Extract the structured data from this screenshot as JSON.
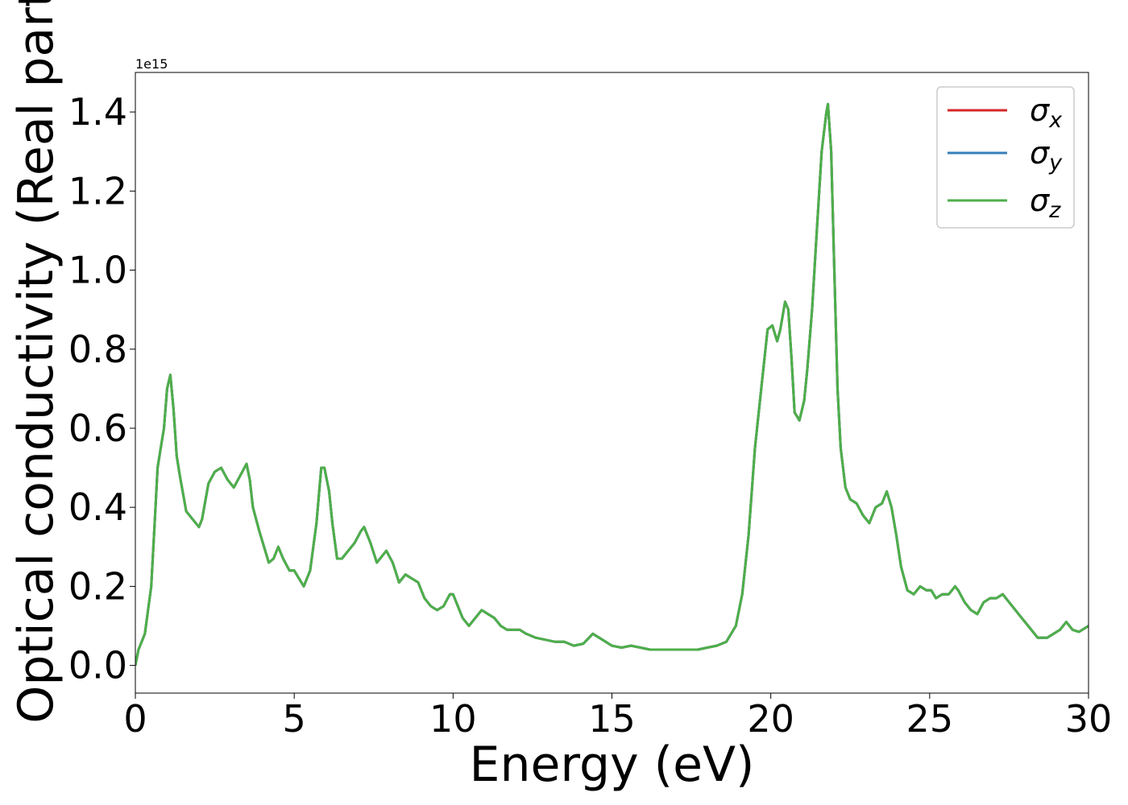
{
  "chart_data": {
    "type": "line",
    "xlabel": "Energy (eV)",
    "ylabel": "Optical conductivity (Real part)",
    "y_offset_label": "1e15",
    "xlim": [
      0,
      30
    ],
    "ylim": [
      -0.07,
      1.5
    ],
    "x_ticks": [
      0,
      5,
      10,
      15,
      20,
      25,
      30
    ],
    "x_tick_labels": [
      "0",
      "5",
      "10",
      "15",
      "20",
      "25",
      "30"
    ],
    "y_ticks": [
      0.0,
      0.2,
      0.4,
      0.6,
      0.8,
      1.0,
      1.2,
      1.4
    ],
    "y_tick_labels": [
      "0.0",
      "0.2",
      "0.4",
      "0.6",
      "0.8",
      "1.0",
      "1.2",
      "1.4"
    ],
    "grid": false,
    "legend_position": "top-right",
    "x": [
      0,
      0.1,
      0.3,
      0.5,
      0.6,
      0.7,
      0.8,
      0.9,
      1.0,
      1.1,
      1.2,
      1.3,
      1.4,
      1.6,
      1.8,
      2.0,
      2.1,
      2.3,
      2.5,
      2.7,
      2.9,
      3.1,
      3.3,
      3.5,
      3.6,
      3.7,
      3.9,
      4.2,
      4.35,
      4.5,
      4.65,
      4.85,
      5.0,
      5.15,
      5.3,
      5.5,
      5.7,
      5.85,
      5.95,
      6.1,
      6.2,
      6.35,
      6.5,
      6.7,
      6.9,
      7.1,
      7.2,
      7.4,
      7.6,
      7.9,
      8.1,
      8.3,
      8.5,
      8.7,
      8.9,
      9.1,
      9.3,
      9.5,
      9.7,
      9.9,
      10.0,
      10.1,
      10.3,
      10.5,
      10.7,
      10.9,
      11.1,
      11.3,
      11.5,
      11.7,
      11.9,
      12.1,
      12.3,
      12.6,
      12.9,
      13.2,
      13.5,
      13.8,
      14.1,
      14.4,
      14.7,
      15.0,
      15.3,
      15.6,
      15.9,
      16.2,
      16.5,
      16.8,
      17.1,
      17.4,
      17.7,
      18.0,
      18.3,
      18.6,
      18.9,
      19.1,
      19.3,
      19.5,
      19.7,
      19.9,
      20.05,
      20.2,
      20.3,
      20.45,
      20.55,
      20.65,
      20.75,
      20.9,
      21.05,
      21.15,
      21.3,
      21.45,
      21.6,
      21.75,
      21.8,
      21.9,
      22.0,
      22.1,
      22.2,
      22.35,
      22.5,
      22.7,
      22.9,
      23.1,
      23.3,
      23.5,
      23.65,
      23.8,
      23.95,
      24.1,
      24.3,
      24.5,
      24.7,
      24.9,
      25.05,
      25.2,
      25.4,
      25.6,
      25.8,
      25.9,
      26.1,
      26.3,
      26.5,
      26.7,
      26.9,
      27.1,
      27.3,
      27.5,
      27.8,
      28.1,
      28.4,
      28.7,
      28.9,
      29.1,
      29.3,
      29.5,
      29.7,
      30.0
    ],
    "series": [
      {
        "name": "σx",
        "color": "#d62728",
        "values": [
          0.0,
          0.04,
          0.08,
          0.2,
          0.35,
          0.5,
          0.55,
          0.6,
          0.7,
          0.735,
          0.65,
          0.53,
          0.48,
          0.39,
          0.37,
          0.35,
          0.37,
          0.46,
          0.49,
          0.5,
          0.47,
          0.45,
          0.48,
          0.51,
          0.47,
          0.4,
          0.34,
          0.26,
          0.27,
          0.3,
          0.27,
          0.24,
          0.24,
          0.22,
          0.2,
          0.24,
          0.36,
          0.5,
          0.5,
          0.44,
          0.36,
          0.27,
          0.27,
          0.29,
          0.31,
          0.34,
          0.35,
          0.31,
          0.26,
          0.29,
          0.26,
          0.21,
          0.23,
          0.22,
          0.21,
          0.17,
          0.15,
          0.14,
          0.15,
          0.18,
          0.18,
          0.16,
          0.12,
          0.1,
          0.12,
          0.14,
          0.13,
          0.12,
          0.1,
          0.09,
          0.09,
          0.09,
          0.08,
          0.07,
          0.065,
          0.06,
          0.06,
          0.05,
          0.055,
          0.08,
          0.065,
          0.05,
          0.045,
          0.05,
          0.045,
          0.04,
          0.04,
          0.04,
          0.04,
          0.04,
          0.04,
          0.045,
          0.05,
          0.06,
          0.1,
          0.18,
          0.33,
          0.55,
          0.7,
          0.85,
          0.86,
          0.82,
          0.85,
          0.92,
          0.9,
          0.78,
          0.64,
          0.62,
          0.67,
          0.75,
          0.9,
          1.1,
          1.3,
          1.4,
          1.42,
          1.3,
          1.0,
          0.7,
          0.55,
          0.45,
          0.42,
          0.41,
          0.38,
          0.36,
          0.4,
          0.41,
          0.44,
          0.4,
          0.33,
          0.25,
          0.19,
          0.18,
          0.2,
          0.19,
          0.19,
          0.17,
          0.18,
          0.18,
          0.2,
          0.19,
          0.16,
          0.14,
          0.13,
          0.16,
          0.17,
          0.17,
          0.18,
          0.16,
          0.13,
          0.1,
          0.07,
          0.07,
          0.08,
          0.09,
          0.11,
          0.09,
          0.085,
          0.1
        ]
      },
      {
        "name": "σy",
        "color": "#377eb8",
        "values": [
          0.0,
          0.04,
          0.08,
          0.2,
          0.35,
          0.5,
          0.55,
          0.6,
          0.7,
          0.735,
          0.65,
          0.53,
          0.48,
          0.39,
          0.37,
          0.35,
          0.37,
          0.46,
          0.49,
          0.5,
          0.47,
          0.45,
          0.48,
          0.51,
          0.47,
          0.4,
          0.34,
          0.26,
          0.27,
          0.3,
          0.27,
          0.24,
          0.24,
          0.22,
          0.2,
          0.24,
          0.36,
          0.5,
          0.5,
          0.44,
          0.36,
          0.27,
          0.27,
          0.29,
          0.31,
          0.34,
          0.35,
          0.31,
          0.26,
          0.29,
          0.26,
          0.21,
          0.23,
          0.22,
          0.21,
          0.17,
          0.15,
          0.14,
          0.15,
          0.18,
          0.18,
          0.16,
          0.12,
          0.1,
          0.12,
          0.14,
          0.13,
          0.12,
          0.1,
          0.09,
          0.09,
          0.09,
          0.08,
          0.07,
          0.065,
          0.06,
          0.06,
          0.05,
          0.055,
          0.08,
          0.065,
          0.05,
          0.045,
          0.05,
          0.045,
          0.04,
          0.04,
          0.04,
          0.04,
          0.04,
          0.04,
          0.045,
          0.05,
          0.06,
          0.1,
          0.18,
          0.33,
          0.55,
          0.7,
          0.85,
          0.86,
          0.82,
          0.85,
          0.92,
          0.9,
          0.78,
          0.64,
          0.62,
          0.67,
          0.75,
          0.9,
          1.1,
          1.3,
          1.4,
          1.42,
          1.3,
          1.0,
          0.7,
          0.55,
          0.45,
          0.42,
          0.41,
          0.38,
          0.36,
          0.4,
          0.41,
          0.44,
          0.4,
          0.33,
          0.25,
          0.19,
          0.18,
          0.2,
          0.19,
          0.19,
          0.17,
          0.18,
          0.18,
          0.2,
          0.19,
          0.16,
          0.14,
          0.13,
          0.16,
          0.17,
          0.17,
          0.18,
          0.16,
          0.13,
          0.1,
          0.07,
          0.07,
          0.08,
          0.09,
          0.11,
          0.09,
          0.085,
          0.1
        ]
      },
      {
        "name": "σz",
        "color": "#4daf4a",
        "values": [
          0.0,
          0.04,
          0.08,
          0.2,
          0.35,
          0.5,
          0.55,
          0.6,
          0.7,
          0.735,
          0.65,
          0.53,
          0.48,
          0.39,
          0.37,
          0.35,
          0.37,
          0.46,
          0.49,
          0.5,
          0.47,
          0.45,
          0.48,
          0.51,
          0.47,
          0.4,
          0.34,
          0.26,
          0.27,
          0.3,
          0.27,
          0.24,
          0.24,
          0.22,
          0.2,
          0.24,
          0.36,
          0.5,
          0.5,
          0.44,
          0.36,
          0.27,
          0.27,
          0.29,
          0.31,
          0.34,
          0.35,
          0.31,
          0.26,
          0.29,
          0.26,
          0.21,
          0.23,
          0.22,
          0.21,
          0.17,
          0.15,
          0.14,
          0.15,
          0.18,
          0.18,
          0.16,
          0.12,
          0.1,
          0.12,
          0.14,
          0.13,
          0.12,
          0.1,
          0.09,
          0.09,
          0.09,
          0.08,
          0.07,
          0.065,
          0.06,
          0.06,
          0.05,
          0.055,
          0.08,
          0.065,
          0.05,
          0.045,
          0.05,
          0.045,
          0.04,
          0.04,
          0.04,
          0.04,
          0.04,
          0.04,
          0.045,
          0.05,
          0.06,
          0.1,
          0.18,
          0.33,
          0.55,
          0.7,
          0.85,
          0.86,
          0.82,
          0.85,
          0.92,
          0.9,
          0.78,
          0.64,
          0.62,
          0.67,
          0.75,
          0.9,
          1.1,
          1.3,
          1.4,
          1.42,
          1.3,
          1.0,
          0.7,
          0.55,
          0.45,
          0.42,
          0.41,
          0.38,
          0.36,
          0.4,
          0.41,
          0.44,
          0.4,
          0.33,
          0.25,
          0.19,
          0.18,
          0.2,
          0.19,
          0.19,
          0.17,
          0.18,
          0.18,
          0.2,
          0.19,
          0.16,
          0.14,
          0.13,
          0.16,
          0.17,
          0.17,
          0.18,
          0.16,
          0.13,
          0.1,
          0.07,
          0.07,
          0.08,
          0.09,
          0.11,
          0.09,
          0.085,
          0.1
        ]
      }
    ],
    "legend": [
      {
        "symbol": "σ",
        "subscript": "x",
        "color": "#d62728"
      },
      {
        "symbol": "σ",
        "subscript": "y",
        "color": "#377eb8"
      },
      {
        "symbol": "σ",
        "subscript": "z",
        "color": "#4daf4a"
      }
    ]
  }
}
